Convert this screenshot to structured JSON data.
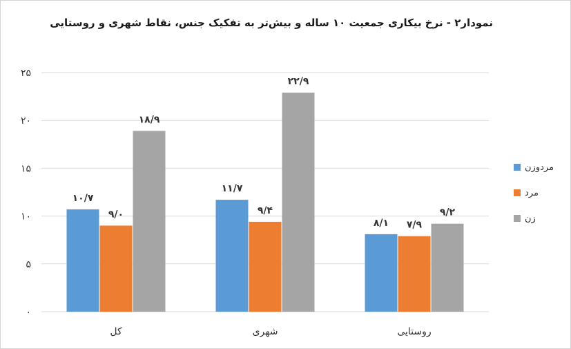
{
  "chart_data": {
    "type": "bar",
    "title": "نمودار۲ - نرخ بیکاری جمعیت ۱۰ ساله و بیش‌تر به تفکیک جنس، نقاط  شهری  و روستایی",
    "categories": [
      "کل",
      "شهری",
      "روستایی"
    ],
    "series": [
      {
        "name": "مردوزن",
        "values": [
          10.7,
          11.7,
          8.1
        ],
        "labels": [
          "۱۰/۷",
          "۱۱/۷",
          "۸/۱"
        ],
        "color": "#5b9bd5"
      },
      {
        "name": "مرد",
        "values": [
          9.0,
          9.4,
          7.9
        ],
        "labels": [
          "۹/۰",
          "۹/۴",
          "۷/۹"
        ],
        "color": "#ed7d31"
      },
      {
        "name": "زن",
        "values": [
          18.9,
          22.9,
          9.2
        ],
        "labels": [
          "۱۸/۹",
          "۲۲/۹",
          "۹/۲"
        ],
        "color": "#a5a5a5"
      }
    ],
    "ylim": [
      0,
      25
    ],
    "yticks": [
      0,
      5,
      10,
      15,
      20,
      25
    ],
    "ytick_labels": [
      "۰",
      "۵",
      "۱۰",
      "۱۵",
      "۲۰",
      "۲۵"
    ],
    "xlabel": "",
    "ylabel": "",
    "grid": true,
    "legend_position": "right"
  }
}
